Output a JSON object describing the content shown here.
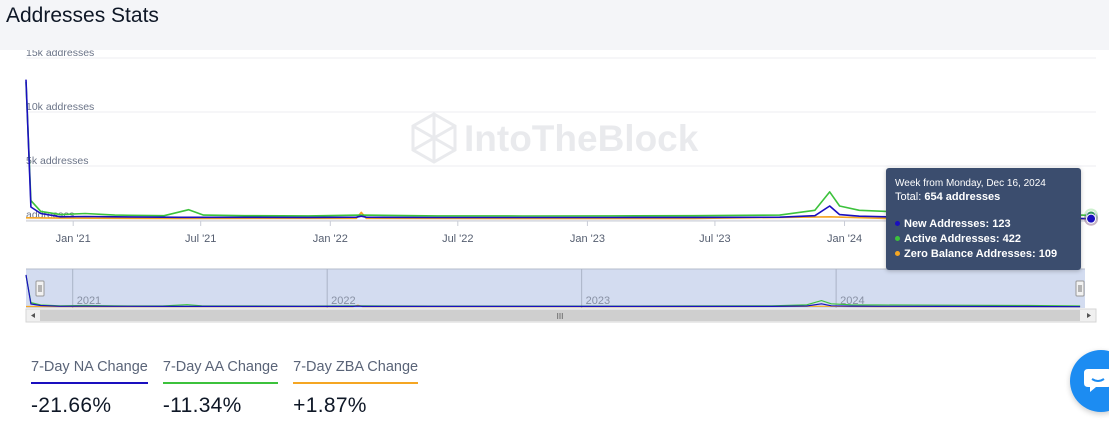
{
  "page": {
    "title": "Addresses Stats",
    "watermark": "IntoTheBlock"
  },
  "colors": {
    "new_addresses": "#1a0fbf",
    "active_addresses": "#3cc23c",
    "zero_balance": "#f5a623",
    "navigator_fill": "#c8d3ec",
    "tooltip_bg": "#3b4d6e"
  },
  "chart_data": {
    "type": "line",
    "title": "",
    "xlabel": "",
    "ylabel": "",
    "ylim": [
      0,
      15000
    ],
    "yticks": [
      {
        "value": 0,
        "label": "addresses"
      },
      {
        "value": 5000,
        "label": "5k addresses"
      },
      {
        "value": 10000,
        "label": "10k addresses"
      },
      {
        "value": 15000,
        "label": "15k addresses"
      }
    ],
    "xlim": [
      "2020-10-26",
      "2024-12-23"
    ],
    "xticks": [
      {
        "date": "2021-01-01",
        "label": "Jan '21"
      },
      {
        "date": "2021-07-01",
        "label": "Jul '21"
      },
      {
        "date": "2022-01-01",
        "label": "Jan '22"
      },
      {
        "date": "2022-07-01",
        "label": "Jul '22"
      },
      {
        "date": "2023-01-01",
        "label": "Jan '23"
      },
      {
        "date": "2023-07-01",
        "label": "Jul '23"
      },
      {
        "date": "2024-01-01",
        "label": "Jan '24"
      }
    ],
    "navigator_labels": [
      {
        "date": "2021-01-01",
        "label": "2021"
      },
      {
        "date": "2022-01-01",
        "label": "2022"
      },
      {
        "date": "2023-01-01",
        "label": "2023"
      },
      {
        "date": "2024-01-01",
        "label": "2024"
      }
    ],
    "legend": "none",
    "grid": true,
    "series": [
      {
        "key": "new",
        "points": [
          [
            "2020-10-26",
            13000
          ],
          [
            "2020-11-02",
            1200
          ],
          [
            "2020-11-16",
            600
          ],
          [
            "2020-12-14",
            300
          ],
          [
            "2021-01-18",
            320
          ],
          [
            "2021-03-01",
            300
          ],
          [
            "2021-06-01",
            250
          ],
          [
            "2021-09-01",
            250
          ],
          [
            "2021-12-01",
            240
          ],
          [
            "2022-02-07",
            260
          ],
          [
            "2022-02-14",
            350
          ],
          [
            "2022-02-21",
            260
          ],
          [
            "2022-06-01",
            230
          ],
          [
            "2022-10-01",
            230
          ],
          [
            "2023-02-01",
            230
          ],
          [
            "2023-06-01",
            240
          ],
          [
            "2023-10-01",
            260
          ],
          [
            "2023-11-20",
            400
          ],
          [
            "2023-12-11",
            1300
          ],
          [
            "2023-12-25",
            500
          ],
          [
            "2024-01-22",
            350
          ],
          [
            "2024-03-01",
            300
          ],
          [
            "2024-06-01",
            250
          ],
          [
            "2024-10-01",
            200
          ],
          [
            "2024-12-16",
            123
          ]
        ]
      },
      {
        "key": "active",
        "points": [
          [
            "2020-10-26",
            12800
          ],
          [
            "2020-11-02",
            1800
          ],
          [
            "2020-11-16",
            800
          ],
          [
            "2020-12-14",
            500
          ],
          [
            "2021-01-18",
            600
          ],
          [
            "2021-03-01",
            450
          ],
          [
            "2021-05-10",
            400
          ],
          [
            "2021-06-14",
            950
          ],
          [
            "2021-07-05",
            450
          ],
          [
            "2021-09-01",
            400
          ],
          [
            "2021-12-01",
            380
          ],
          [
            "2022-02-14",
            450
          ],
          [
            "2022-06-01",
            380
          ],
          [
            "2022-10-01",
            370
          ],
          [
            "2023-02-01",
            380
          ],
          [
            "2023-06-01",
            400
          ],
          [
            "2023-10-01",
            450
          ],
          [
            "2023-11-20",
            900
          ],
          [
            "2023-12-11",
            2600
          ],
          [
            "2023-12-25",
            1300
          ],
          [
            "2024-01-22",
            900
          ],
          [
            "2024-03-01",
            800
          ],
          [
            "2024-06-01",
            750
          ],
          [
            "2024-10-01",
            600
          ],
          [
            "2024-12-16",
            422
          ]
        ]
      },
      {
        "key": "zero",
        "points": [
          [
            "2020-10-26",
            200
          ],
          [
            "2020-12-14",
            180
          ],
          [
            "2021-06-01",
            150
          ],
          [
            "2022-02-07",
            160
          ],
          [
            "2022-02-14",
            700
          ],
          [
            "2022-02-21",
            160
          ],
          [
            "2022-10-01",
            140
          ],
          [
            "2023-06-01",
            140
          ],
          [
            "2023-12-11",
            300
          ],
          [
            "2024-03-01",
            150
          ],
          [
            "2024-10-01",
            120
          ],
          [
            "2024-12-16",
            109
          ]
        ]
      }
    ]
  },
  "tooltip": {
    "header": "Week from Monday, Dec 16, 2024",
    "total_prefix": "Total: ",
    "total_value": "654 addresses",
    "rows": [
      {
        "label": "New Addresses: ",
        "value": "123"
      },
      {
        "label": "Active Addresses: ",
        "value": "422"
      },
      {
        "label": "Zero Balance Addresses: ",
        "value": "109"
      }
    ]
  },
  "stats": [
    {
      "label": "7-Day NA Change",
      "value": "-21.66%"
    },
    {
      "label": "7-Day AA Change",
      "value": "-11.34%"
    },
    {
      "label": "7-Day ZBA Change",
      "value": "+1.87%"
    }
  ],
  "navigator": {
    "scroll_grip": "III"
  }
}
